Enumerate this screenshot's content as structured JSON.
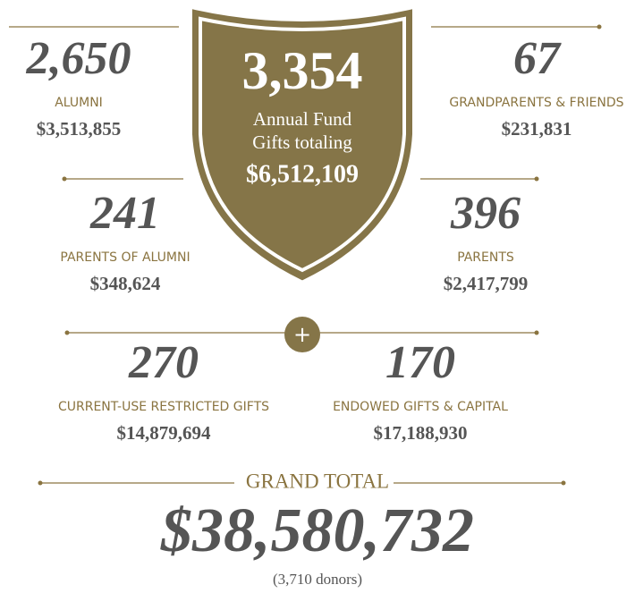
{
  "shield": {
    "count": "3,354",
    "line1": "Annual Fund",
    "line2": "Gifts totaling",
    "amount": "$6,512,109"
  },
  "groups": [
    {
      "count": "2,650",
      "label": "ALUMNI",
      "amount": "$3,513,855"
    },
    {
      "count": "67",
      "label": "GRANDPARENTS & FRIENDS",
      "amount": "$231,831"
    },
    {
      "count": "241",
      "label": "PARENTS OF ALUMNI",
      "amount": "$348,624"
    },
    {
      "count": "396",
      "label": "PARENTS",
      "amount": "$2,417,799"
    },
    {
      "count": "270",
      "label": "CURRENT-USE RESTRICTED GIFTS",
      "amount": "$14,879,694"
    },
    {
      "count": "170",
      "label": "ENDOWED GIFTS & CAPITAL",
      "amount": "$17,188,930"
    }
  ],
  "plus": "+",
  "grand_total": {
    "label": "GRAND TOTAL",
    "amount": "$38,580,732",
    "donors": "(3,710 donors)"
  }
}
